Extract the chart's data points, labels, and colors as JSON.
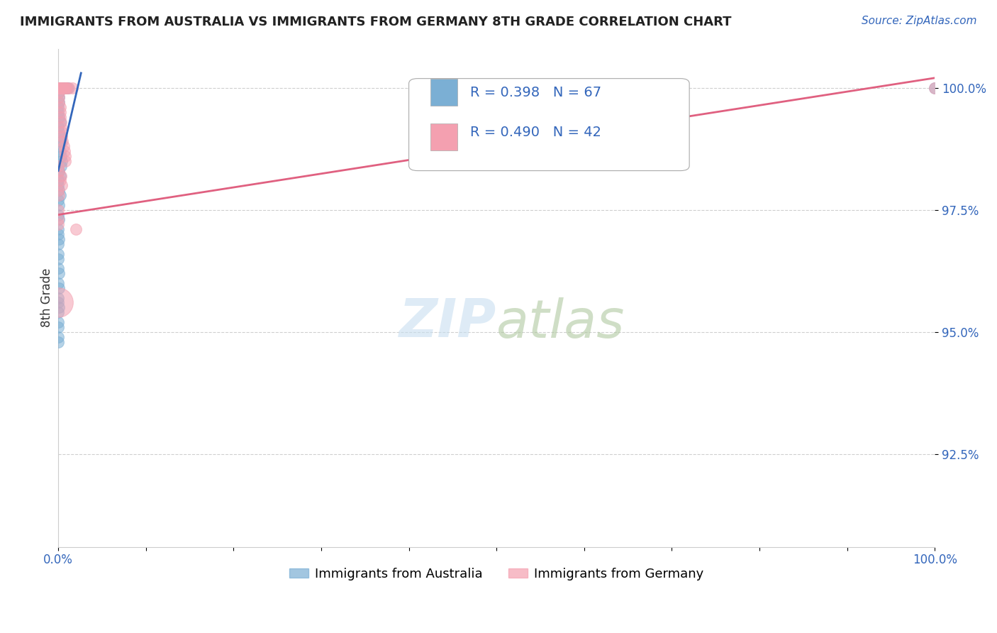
{
  "title": "IMMIGRANTS FROM AUSTRALIA VS IMMIGRANTS FROM GERMANY 8TH GRADE CORRELATION CHART",
  "source_text": "Source: ZipAtlas.com",
  "ylabel": "8th Grade",
  "xlim": [
    0.0,
    1.0
  ],
  "ylim": [
    0.906,
    1.008
  ],
  "yticks": [
    1.0,
    0.975,
    0.95,
    0.925
  ],
  "ytick_labels": [
    "100.0%",
    "97.5%",
    "95.0%",
    "92.5%"
  ],
  "xtick_positions": [
    0.0,
    0.1,
    0.2,
    0.3,
    0.4,
    0.5,
    0.6,
    0.7,
    0.8,
    0.9,
    1.0
  ],
  "xtick_labels_shown": [
    "0.0%",
    "",
    "",
    "",
    "",
    "",
    "",
    "",
    "",
    "",
    "100.0%"
  ],
  "legend_entries": [
    {
      "label": "Immigrants from Australia",
      "color": "#7bafd4",
      "line_color": "#3366bb",
      "R": 0.398,
      "N": 67
    },
    {
      "label": "Immigrants from Germany",
      "color": "#f4a0b0",
      "line_color": "#e06080",
      "R": 0.49,
      "N": 42
    }
  ],
  "background_color": "#ffffff",
  "grid_color": "#bbbbbb",
  "watermark_text": "ZIPatlas",
  "blue_line": [
    [
      0.0,
      0.983
    ],
    [
      0.026,
      1.003
    ]
  ],
  "pink_line": [
    [
      0.0,
      0.974
    ],
    [
      1.0,
      1.002
    ]
  ],
  "aus_points": [
    [
      0.0,
      1.0
    ],
    [
      0.0,
      1.0
    ],
    [
      0.0,
      1.0
    ],
    [
      0.0,
      1.0
    ],
    [
      0.0,
      1.0
    ],
    [
      0.0,
      1.0
    ],
    [
      0.0,
      1.0
    ],
    [
      0.0,
      1.0
    ],
    [
      0.0,
      1.0
    ],
    [
      0.0,
      1.0
    ],
    [
      0.0,
      1.0
    ],
    [
      0.0,
      1.0
    ],
    [
      0.002,
      1.0
    ],
    [
      0.003,
      1.0
    ],
    [
      0.004,
      1.0
    ],
    [
      0.005,
      1.0
    ],
    [
      0.006,
      1.0
    ],
    [
      0.007,
      1.0
    ],
    [
      0.008,
      1.0
    ],
    [
      0.009,
      1.0
    ],
    [
      0.01,
      1.0
    ],
    [
      0.011,
      1.0
    ],
    [
      0.001,
      0.999
    ],
    [
      0.001,
      0.998
    ],
    [
      0.001,
      0.997
    ],
    [
      0.0,
      0.996
    ],
    [
      0.0,
      0.995
    ],
    [
      0.001,
      0.994
    ],
    [
      0.002,
      0.993
    ],
    [
      0.0,
      0.992
    ],
    [
      0.001,
      0.991
    ],
    [
      0.002,
      0.99
    ],
    [
      0.003,
      0.989
    ],
    [
      0.001,
      0.988
    ],
    [
      0.002,
      0.987
    ],
    [
      0.003,
      0.986
    ],
    [
      0.004,
      0.985
    ],
    [
      0.003,
      0.984
    ],
    [
      0.001,
      0.983
    ],
    [
      0.002,
      0.982
    ],
    [
      0.0,
      0.981
    ],
    [
      0.0,
      0.98
    ],
    [
      0.001,
      0.979
    ],
    [
      0.002,
      0.978
    ],
    [
      0.0,
      0.977
    ],
    [
      0.001,
      0.976
    ],
    [
      0.0,
      0.974
    ],
    [
      0.001,
      0.973
    ],
    [
      0.0,
      0.971
    ],
    [
      0.0,
      0.97
    ],
    [
      0.001,
      0.969
    ],
    [
      0.0,
      0.968
    ],
    [
      0.0,
      0.966
    ],
    [
      0.0,
      0.965
    ],
    [
      0.0,
      0.963
    ],
    [
      0.001,
      0.962
    ],
    [
      0.0,
      0.96
    ],
    [
      0.001,
      0.959
    ],
    [
      0.0,
      0.957
    ],
    [
      0.0,
      0.956
    ],
    [
      0.001,
      0.955
    ],
    [
      0.0,
      0.954
    ],
    [
      0.0,
      0.952
    ],
    [
      0.0,
      0.951
    ],
    [
      0.0,
      0.949
    ],
    [
      0.0,
      0.948
    ],
    [
      1.0,
      1.0
    ]
  ],
  "ger_points": [
    [
      0.0,
      1.0
    ],
    [
      0.0,
      1.0
    ],
    [
      0.0,
      1.0
    ],
    [
      0.0,
      1.0
    ],
    [
      0.0,
      1.0
    ],
    [
      0.002,
      1.0
    ],
    [
      0.003,
      1.0
    ],
    [
      0.004,
      1.0
    ],
    [
      0.005,
      1.0
    ],
    [
      0.006,
      1.0
    ],
    [
      0.008,
      1.0
    ],
    [
      0.009,
      1.0
    ],
    [
      0.01,
      1.0
    ],
    [
      0.012,
      1.0
    ],
    [
      0.016,
      1.0
    ],
    [
      0.001,
      0.999
    ],
    [
      0.001,
      0.998
    ],
    [
      0.001,
      0.997
    ],
    [
      0.002,
      0.996
    ],
    [
      0.002,
      0.995
    ],
    [
      0.002,
      0.994
    ],
    [
      0.003,
      0.993
    ],
    [
      0.003,
      0.992
    ],
    [
      0.004,
      0.991
    ],
    [
      0.004,
      0.99
    ],
    [
      0.005,
      0.989
    ],
    [
      0.006,
      0.988
    ],
    [
      0.007,
      0.987
    ],
    [
      0.008,
      0.986
    ],
    [
      0.008,
      0.985
    ],
    [
      0.0,
      0.984
    ],
    [
      0.001,
      0.983
    ],
    [
      0.003,
      0.982
    ],
    [
      0.002,
      0.981
    ],
    [
      0.004,
      0.98
    ],
    [
      0.0,
      0.979
    ],
    [
      0.001,
      0.978
    ],
    [
      0.0,
      0.975
    ],
    [
      0.0,
      0.973
    ],
    [
      0.0,
      0.972
    ],
    [
      0.02,
      0.971
    ],
    [
      1.0,
      1.0
    ]
  ],
  "ger_big_point": [
    0.0,
    0.956
  ]
}
